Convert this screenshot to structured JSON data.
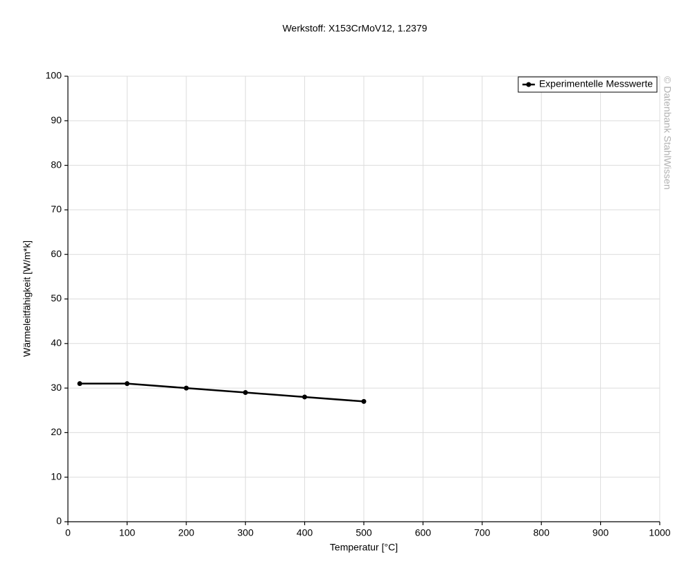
{
  "chart_data": {
    "type": "line",
    "title": "Werkstoff: X153CrMoV12, 1.2379",
    "x_label": "Temperatur [°C]",
    "y_label": "Wärmeleitfähigkeit [W/m*k]",
    "watermark": "© Datenbank StahlWissen",
    "x": [
      20,
      100,
      200,
      300,
      400,
      500
    ],
    "series": [
      {
        "name": "Experimentelle Messwerte",
        "color": "#000000",
        "values": [
          31,
          31,
          30,
          29,
          28,
          27
        ]
      }
    ],
    "xlim": [
      0,
      1000
    ],
    "xticks": [
      0,
      100,
      200,
      300,
      400,
      500,
      600,
      700,
      800,
      900,
      1000
    ],
    "ylim": [
      0,
      100
    ],
    "yticks": [
      0,
      10,
      20,
      30,
      40,
      50,
      60,
      70,
      80,
      90,
      100
    ],
    "grid": true,
    "legend": "top-right"
  }
}
